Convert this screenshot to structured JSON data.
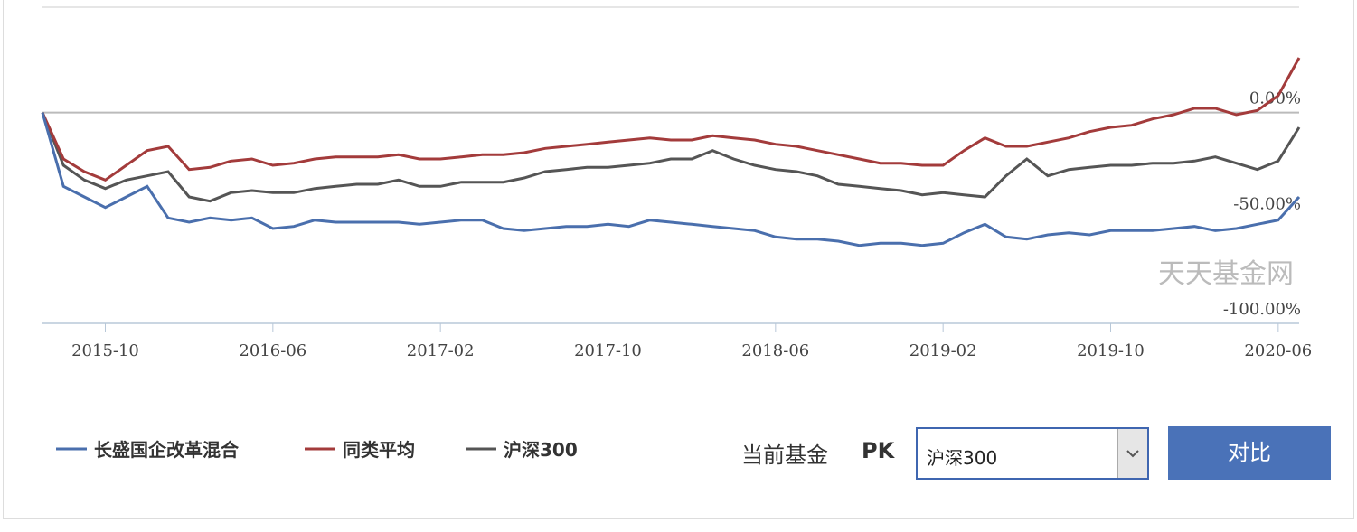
{
  "chart_data": {
    "type": "line",
    "watermark": "天天基金网",
    "x": [
      "2015-07",
      "2015-08",
      "2015-09",
      "2015-10",
      "2015-11",
      "2015-12",
      "2016-01",
      "2016-02",
      "2016-03",
      "2016-04",
      "2016-05",
      "2016-06",
      "2016-07",
      "2016-08",
      "2016-09",
      "2016-10",
      "2016-11",
      "2016-12",
      "2017-01",
      "2017-02",
      "2017-03",
      "2017-04",
      "2017-05",
      "2017-06",
      "2017-07",
      "2017-08",
      "2017-09",
      "2017-10",
      "2017-11",
      "2017-12",
      "2018-01",
      "2018-02",
      "2018-03",
      "2018-04",
      "2018-05",
      "2018-06",
      "2018-07",
      "2018-08",
      "2018-09",
      "2018-10",
      "2018-11",
      "2018-12",
      "2019-01",
      "2019-02",
      "2019-03",
      "2019-04",
      "2019-05",
      "2019-06",
      "2019-07",
      "2019-08",
      "2019-09",
      "2019-10",
      "2019-11",
      "2019-12",
      "2020-01",
      "2020-02",
      "2020-03",
      "2020-04",
      "2020-05",
      "2020-06",
      "2020-07"
    ],
    "xlim": [
      "2015-07",
      "2020-07"
    ],
    "xticks": [
      "2015-10",
      "2016-06",
      "2017-02",
      "2017-10",
      "2018-06",
      "2019-02",
      "2019-10",
      "2020-06"
    ],
    "ylim": [
      -100,
      50
    ],
    "yticks": [
      {
        "value": -100,
        "label": "-100.00%"
      },
      {
        "value": -50,
        "label": "-50.00%"
      },
      {
        "value": 0,
        "label": "0.00%"
      }
    ],
    "series": [
      {
        "name": "长盛国企改革混合",
        "color": "#4a6fad",
        "values": [
          0,
          -35,
          -40,
          -45,
          -40,
          -35,
          -50,
          -52,
          -50,
          -51,
          -50,
          -55,
          -54,
          -51,
          -52,
          -52,
          -52,
          -52,
          -53,
          -52,
          -51,
          -51,
          -55,
          -56,
          -55,
          -54,
          -54,
          -53,
          -54,
          -51,
          -52,
          -53,
          -54,
          -55,
          -56,
          -59,
          -60,
          -60,
          -61,
          -63,
          -62,
          -62,
          -63,
          -62,
          -57,
          -53,
          -59,
          -60,
          -58,
          -57,
          -58,
          -56,
          -56,
          -56,
          -55,
          -54,
          -56,
          -55,
          -53,
          -51,
          -40
        ]
      },
      {
        "name": "同类平均",
        "color": "#a33b3b",
        "values": [
          0,
          -22,
          -28,
          -32,
          -25,
          -18,
          -16,
          -27,
          -26,
          -23,
          -22,
          -25,
          -24,
          -22,
          -21,
          -21,
          -21,
          -20,
          -22,
          -22,
          -21,
          -20,
          -20,
          -19,
          -17,
          -16,
          -15,
          -14,
          -13,
          -12,
          -13,
          -13,
          -11,
          -12,
          -13,
          -15,
          -16,
          -18,
          -20,
          -22,
          -24,
          -24,
          -25,
          -25,
          -18,
          -12,
          -16,
          -16,
          -14,
          -12,
          -9,
          -7,
          -6,
          -3,
          -1,
          2,
          2,
          -1,
          1,
          8,
          26
        ]
      },
      {
        "name": "沪深300",
        "color": "#555555",
        "values": [
          0,
          -25,
          -32,
          -36,
          -32,
          -30,
          -28,
          -40,
          -42,
          -38,
          -37,
          -38,
          -38,
          -36,
          -35,
          -34,
          -34,
          -32,
          -35,
          -35,
          -33,
          -33,
          -33,
          -31,
          -28,
          -27,
          -26,
          -26,
          -25,
          -24,
          -22,
          -22,
          -18,
          -22,
          -25,
          -27,
          -28,
          -30,
          -34,
          -35,
          -36,
          -37,
          -39,
          -38,
          -39,
          -40,
          -30,
          -22,
          -30,
          -27,
          -26,
          -25,
          -25,
          -24,
          -24,
          -23,
          -21,
          -24,
          -27,
          -23,
          -7
        ]
      }
    ]
  },
  "controls": {
    "current_label": "当前基金",
    "pk": "PK",
    "select_value": "沪深300",
    "button": "对比"
  }
}
